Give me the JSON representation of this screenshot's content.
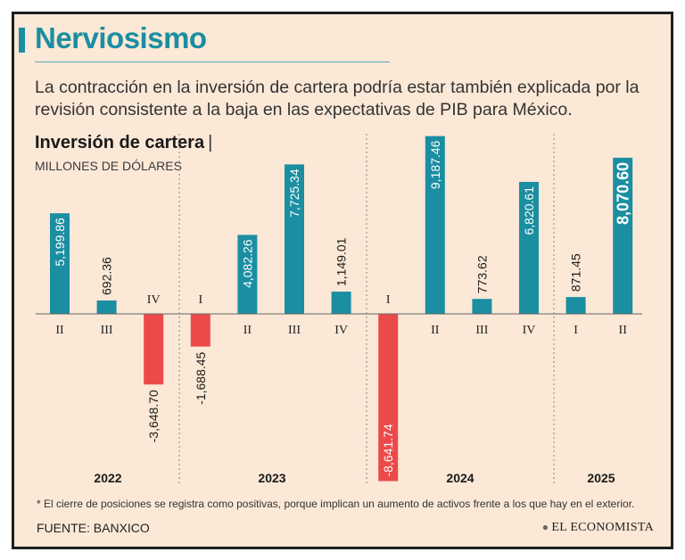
{
  "header": {
    "title": "Nerviosismo",
    "intro": "La contracción en la inversión de cartera podría estar también explicada por la revisión consistente a la baja en las expectativas de PIB para México."
  },
  "chart_data": {
    "type": "bar",
    "title": "Inversión de cartera",
    "title_separator": "|",
    "ylabel": "MILLONES DE DÓLARES",
    "xlabel": "",
    "ylim": [
      -9000,
      10000
    ],
    "grid": false,
    "categories": [
      "II",
      "III",
      "IV",
      "I",
      "II",
      "III",
      "IV",
      "I",
      "II",
      "III",
      "IV",
      "I",
      "II"
    ],
    "years": [
      "2022",
      "2022",
      "2022",
      "2023",
      "2023",
      "2023",
      "2023",
      "2024",
      "2024",
      "2024",
      "2024",
      "2025",
      "2025"
    ],
    "values": [
      5199.86,
      692.36,
      -3648.7,
      -1688.45,
      4082.26,
      7725.34,
      1149.01,
      -8641.74,
      9187.46,
      773.62,
      6820.61,
      871.45,
      8070.6
    ],
    "labels": [
      "5,199.86",
      "692.36",
      "-3,648.70",
      "-1,688.45",
      "4,082.26",
      "7,725.34",
      "1,149.01",
      "-8,641.74",
      "9,187.46",
      "773.62",
      "6,820.61",
      "871.45",
      "8,070.60"
    ],
    "year_groups": [
      {
        "year": "2022",
        "count": 3
      },
      {
        "year": "2023",
        "count": 4
      },
      {
        "year": "2024",
        "count": 4
      },
      {
        "year": "2025",
        "count": 2
      }
    ],
    "highlight_last": true,
    "colors": {
      "positive": "#1b8ea1",
      "negative": "#ec4a4a"
    }
  },
  "footer": {
    "note": "* El cierre de posiciones se registra como positivas, porque implican un aumento de activos frente a los que hay en el exterior.",
    "source": "FUENTE: BANXICO",
    "brand": "EL ECONOMISTA",
    "brand_mark": "●"
  }
}
